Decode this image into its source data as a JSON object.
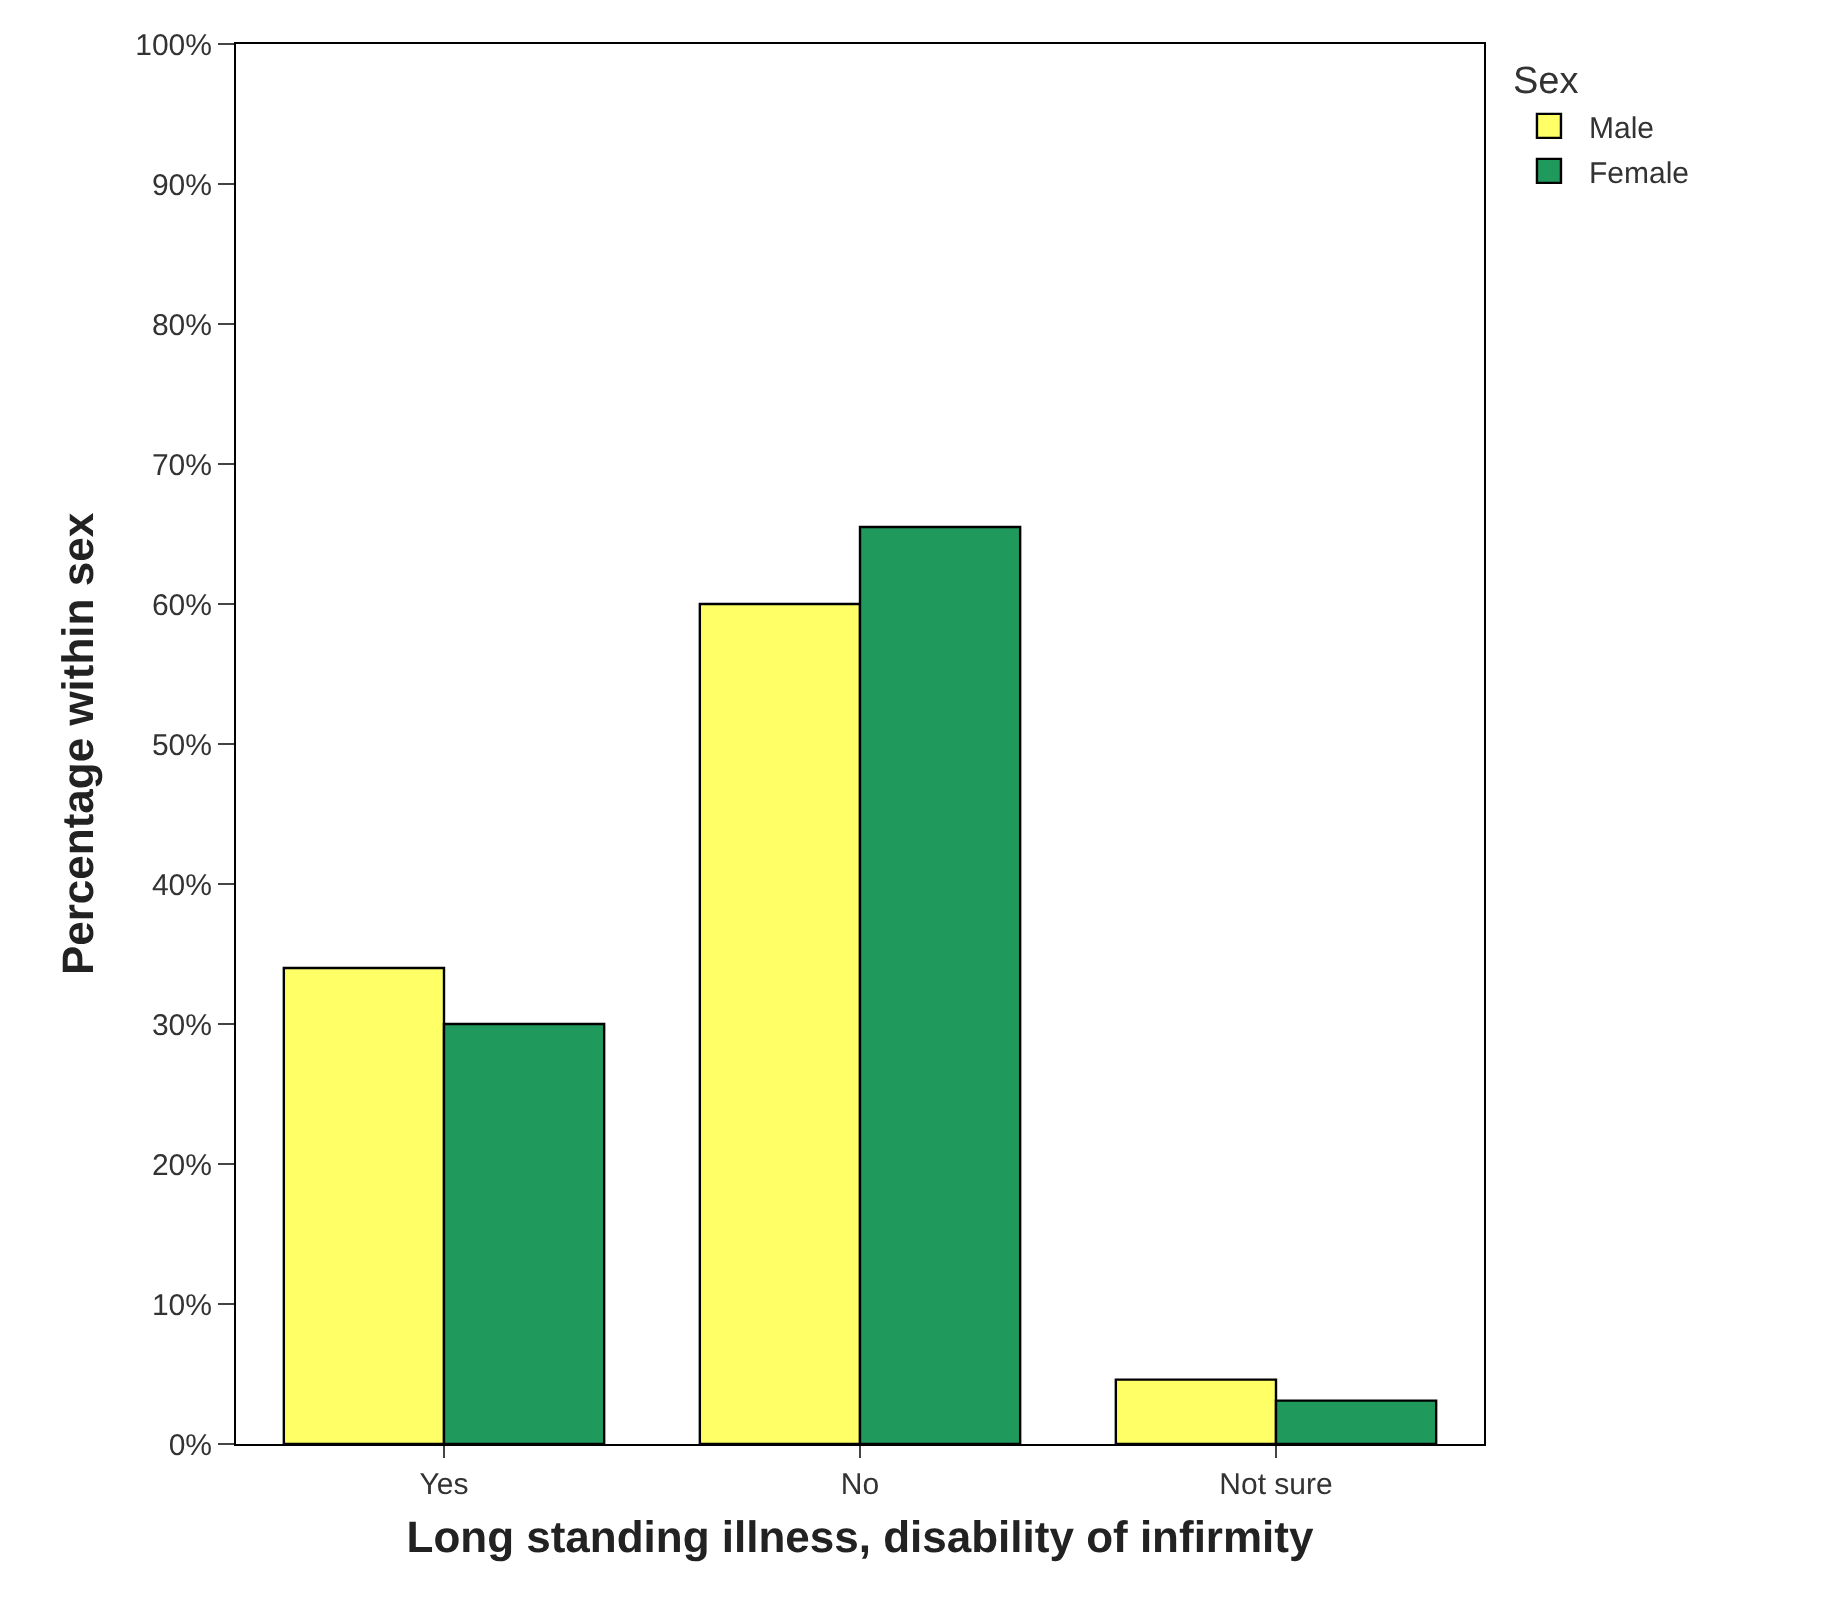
{
  "chart_data": {
    "type": "bar",
    "xlabel": "Long standing illness, disability of infirmity",
    "ylabel": "Percentage within sex",
    "legend_title": "Sex",
    "categories": [
      "Yes",
      "No",
      "Not sure"
    ],
    "series": [
      {
        "name": "Male",
        "color": "#ffff66",
        "values": [
          34,
          60,
          4.6
        ]
      },
      {
        "name": "Female",
        "color": "#1f9a5c",
        "values": [
          30,
          65.5,
          3.1
        ]
      }
    ],
    "ylim": [
      0,
      100
    ],
    "yticks": [
      {
        "value": 0,
        "label": "0%"
      },
      {
        "value": 10,
        "label": "10%"
      },
      {
        "value": 20,
        "label": "20%"
      },
      {
        "value": 30,
        "label": "30%"
      },
      {
        "value": 40,
        "label": "40%"
      },
      {
        "value": 50,
        "label": "50%"
      },
      {
        "value": 60,
        "label": "60%"
      },
      {
        "value": 70,
        "label": "70%"
      },
      {
        "value": 80,
        "label": "80%"
      },
      {
        "value": 90,
        "label": "90%"
      },
      {
        "value": 100,
        "label": "100%"
      }
    ],
    "grid": false,
    "legend": "top right"
  }
}
